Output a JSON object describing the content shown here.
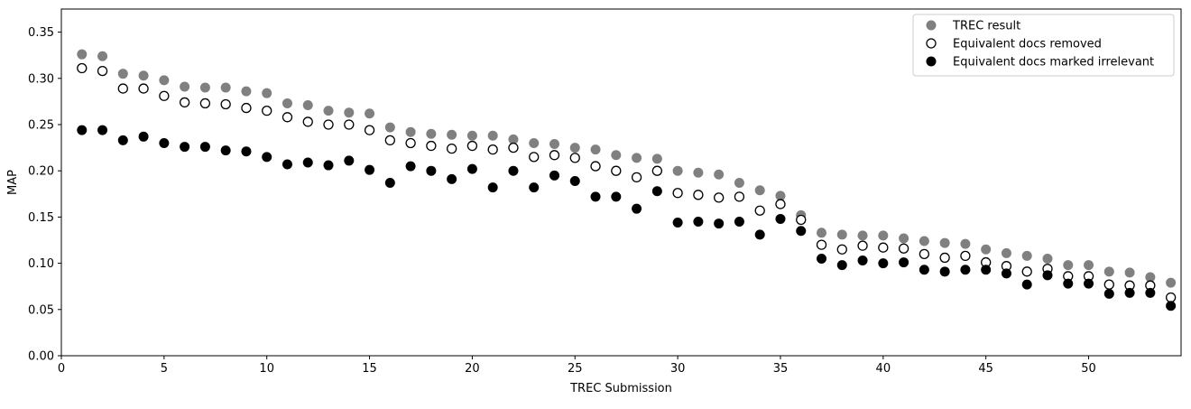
{
  "chart_data": {
    "type": "scatter",
    "xlabel": "TREC Submission",
    "ylabel": "MAP",
    "xlim": [
      0,
      54.5
    ],
    "ylim": [
      0,
      0.375
    ],
    "xticks": [
      0,
      5,
      10,
      15,
      20,
      25,
      30,
      35,
      40,
      45,
      50
    ],
    "xtick_labels": [
      "0",
      "5",
      "10",
      "15",
      "20",
      "25",
      "30",
      "35",
      "40",
      "45",
      "50"
    ],
    "yticks": [
      0,
      0.05,
      0.1,
      0.15,
      0.2,
      0.25,
      0.3,
      0.35
    ],
    "ytick_labels": [
      "0.00",
      "0.05",
      "0.10",
      "0.15",
      "0.20",
      "0.25",
      "0.30",
      "0.35"
    ],
    "grid": false,
    "legend_position": "top-right",
    "x": [
      1,
      2,
      3,
      4,
      5,
      6,
      7,
      8,
      9,
      10,
      11,
      12,
      13,
      14,
      15,
      16,
      17,
      18,
      19,
      20,
      21,
      22,
      23,
      24,
      25,
      26,
      27,
      28,
      29,
      30,
      31,
      32,
      33,
      34,
      35,
      36,
      37,
      38,
      39,
      40,
      41,
      42,
      43,
      44,
      45,
      46,
      47,
      48,
      49,
      50,
      51,
      52,
      53,
      54
    ],
    "series": [
      {
        "name": "TREC result",
        "style": "filled-gray",
        "color": "#808080",
        "values": [
          0.326,
          0.324,
          0.305,
          0.303,
          0.298,
          0.291,
          0.29,
          0.29,
          0.286,
          0.284,
          0.273,
          0.271,
          0.265,
          0.263,
          0.262,
          0.247,
          0.242,
          0.24,
          0.239,
          0.238,
          0.238,
          0.234,
          0.23,
          0.229,
          0.225,
          0.223,
          0.217,
          0.214,
          0.213,
          0.2,
          0.198,
          0.196,
          0.187,
          0.179,
          0.173,
          0.152,
          0.133,
          0.131,
          0.13,
          0.13,
          0.127,
          0.124,
          0.122,
          0.121,
          0.115,
          0.111,
          0.108,
          0.105,
          0.098,
          0.098,
          0.091,
          0.09,
          0.085,
          0.079
        ]
      },
      {
        "name": "Equivalent docs removed",
        "style": "hollow",
        "color": "#000000",
        "values": [
          0.311,
          0.308,
          0.289,
          0.289,
          0.281,
          0.274,
          0.273,
          0.272,
          0.268,
          0.265,
          0.258,
          0.253,
          0.25,
          0.25,
          0.244,
          0.233,
          0.23,
          0.227,
          0.224,
          0.227,
          0.223,
          0.225,
          0.215,
          0.217,
          0.214,
          0.205,
          0.2,
          0.193,
          0.2,
          0.176,
          0.174,
          0.171,
          0.172,
          0.157,
          0.164,
          0.147,
          0.12,
          0.115,
          0.119,
          0.117,
          0.116,
          0.11,
          0.106,
          0.108,
          0.101,
          0.097,
          0.091,
          0.094,
          0.086,
          0.086,
          0.077,
          0.076,
          0.076,
          0.063
        ]
      },
      {
        "name": "Equivalent docs marked irrelevant",
        "style": "filled-black",
        "color": "#000000",
        "values": [
          0.244,
          0.244,
          0.233,
          0.237,
          0.23,
          0.226,
          0.226,
          0.222,
          0.221,
          0.215,
          0.207,
          0.209,
          0.206,
          0.211,
          0.201,
          0.187,
          0.205,
          0.2,
          0.191,
          0.202,
          0.182,
          0.2,
          0.182,
          0.195,
          0.189,
          0.172,
          0.172,
          0.159,
          0.178,
          0.144,
          0.145,
          0.143,
          0.145,
          0.131,
          0.148,
          0.135,
          0.105,
          0.098,
          0.103,
          0.1,
          0.101,
          0.093,
          0.091,
          0.093,
          0.093,
          0.089,
          0.077,
          0.087,
          0.078,
          0.078,
          0.067,
          0.068,
          0.068,
          0.054
        ]
      }
    ]
  }
}
